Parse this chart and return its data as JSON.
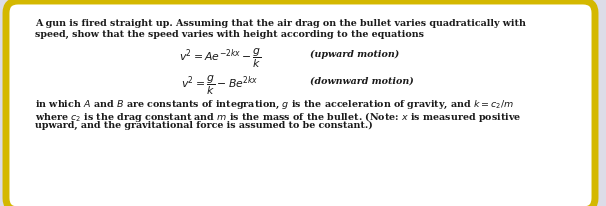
{
  "background_color": "#dcdce8",
  "box_color": "#ffffff",
  "border_color": "#d4b800",
  "line1": "A gun is fired straight up. Assuming that the air drag on the bullet varies quadratically with",
  "line2": "speed, show that the speed varies with height according to the equations",
  "eq1_math": "$v^2 = Ae^{-2kx} - \\dfrac{g}{k}$",
  "eq1_label": "(upward motion)",
  "eq2_math": "$v^2 = \\dfrac{g}{k} - Be^{2kx}$",
  "eq2_label": "(downward motion)",
  "footer1": "in which $A$ and $B$ are constants of integration, $g$ is the acceleration of gravity, and $k = c_2/m$",
  "footer2": "where $c_2$ is the drag constant and $m$ is the mass of the bullet. (Note: $x$ is measured positive",
  "footer3": "upward, and the gravitational force is assumed to be constant.)",
  "text_color": "#1a1a1a",
  "font_size_body": 6.8,
  "font_size_eq": 7.8,
  "font_size_label": 6.8
}
